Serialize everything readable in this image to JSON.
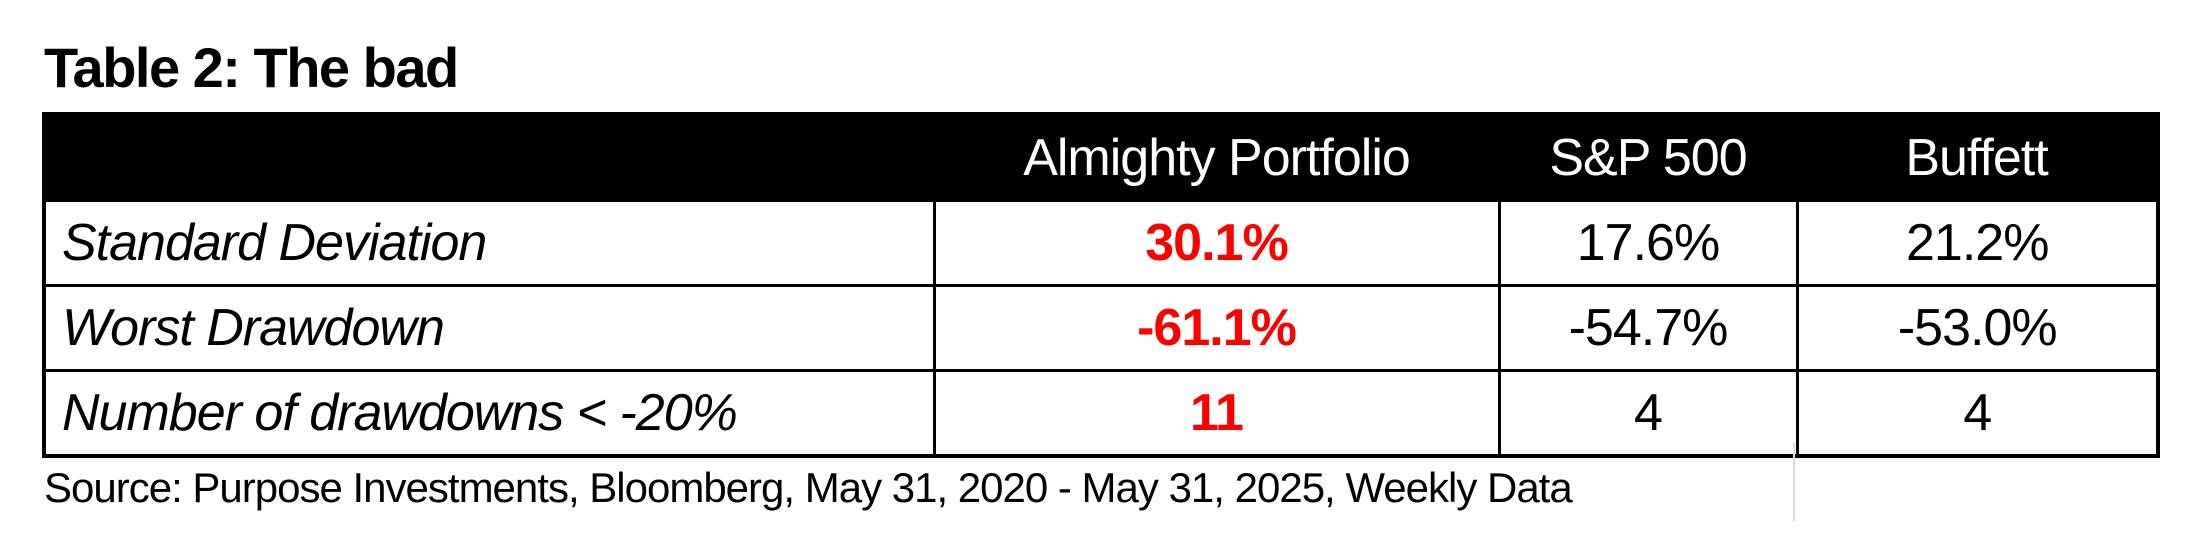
{
  "colors": {
    "page_bg": "#ffffff",
    "header_bg": "#000000",
    "header_text": "#ffffff",
    "body_text": "#000000",
    "border": "#000000",
    "highlight_red": "#ff0000",
    "faint_gridline": "#d9d9d9"
  },
  "chart_data": {
    "type": "table",
    "title": "Table 2: The bad",
    "columns": [
      "",
      "Almighty Portfolio",
      "S&P 500",
      "Buffett"
    ],
    "highlighted_column": "Almighty Portfolio",
    "rows": [
      {
        "label": "Standard Deviation",
        "display": [
          "30.1%",
          "17.6%",
          "21.2%"
        ],
        "values": [
          30.1,
          17.6,
          21.2
        ],
        "unit": "percent"
      },
      {
        "label": "Worst Drawdown",
        "display": [
          "-61.1%",
          "-54.7%",
          "-53.0%"
        ],
        "values": [
          -61.1,
          -54.7,
          -53.0
        ],
        "unit": "percent"
      },
      {
        "label": "Number of drawdowns < -20%",
        "display": [
          "11",
          "4",
          "4"
        ],
        "values": [
          11,
          4,
          4
        ],
        "unit": "count"
      }
    ],
    "source_note": "Source: Purpose Investments, Bloomberg, May 31, 2020 - May 31, 2025, Weekly Data"
  }
}
